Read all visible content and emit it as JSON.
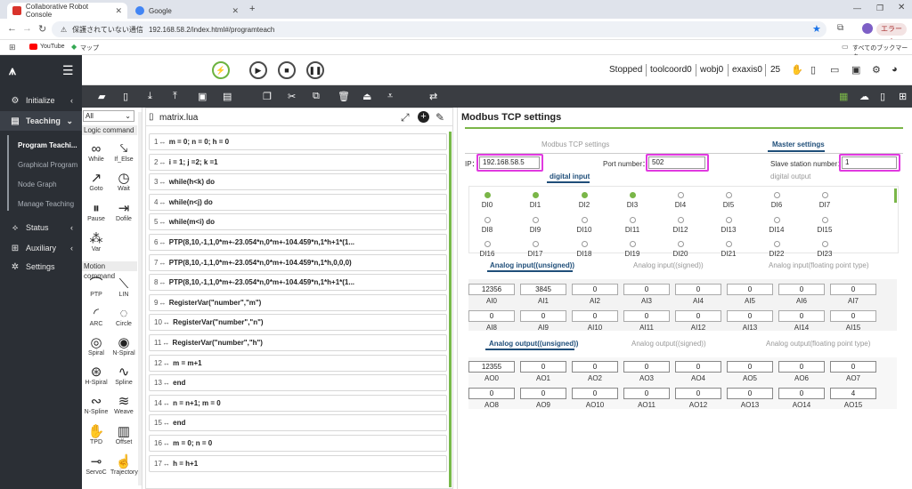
{
  "browser": {
    "tabs": [
      {
        "title": "Collaborative Robot Console"
      },
      {
        "title": "Google"
      }
    ],
    "url_warning": "保護されていない通信",
    "url": "192.168.58.2/index.html#/programteach",
    "profile_label": "エラー",
    "bookmarks": [
      {
        "label": "YouTube"
      },
      {
        "label": "マップ"
      }
    ],
    "all_bookmarks": "すべてのブックマーク"
  },
  "sidenav": {
    "items": [
      {
        "label": "Initialize"
      },
      {
        "label": "Teaching"
      },
      {
        "label": "Status"
      },
      {
        "label": "Auxiliary"
      },
      {
        "label": "Settings"
      }
    ],
    "teaching_sub": [
      {
        "label": "Program Teachi..."
      },
      {
        "label": "Graphical Program"
      },
      {
        "label": "Node Graph"
      },
      {
        "label": "Manage Teaching"
      }
    ]
  },
  "topbar": {
    "status": "Stopped",
    "coord": "toolcoord0",
    "wobj": "wobj0",
    "exaxis": "exaxis0",
    "speed": "25"
  },
  "palette": {
    "filter": "All",
    "logic_header": "Logic command",
    "logic": [
      {
        "label": "While"
      },
      {
        "label": "If_Else"
      },
      {
        "label": "Goto"
      },
      {
        "label": "Wait"
      },
      {
        "label": "Pause"
      },
      {
        "label": "Dofile"
      },
      {
        "label": "Var"
      }
    ],
    "motion_header": "Motion command",
    "motion": [
      {
        "label": "PTP"
      },
      {
        "label": "LIN"
      },
      {
        "label": "ARC"
      },
      {
        "label": "Circle"
      },
      {
        "label": "Spiral"
      },
      {
        "label": "N-Spiral"
      },
      {
        "label": "H-Spiral"
      },
      {
        "label": "Spline"
      },
      {
        "label": "N-Spline"
      },
      {
        "label": "Weave"
      },
      {
        "label": "TPD"
      },
      {
        "label": "Offset"
      },
      {
        "label": "ServoC"
      },
      {
        "label": "Trajectory"
      }
    ]
  },
  "editor": {
    "filename": "matrix.lua",
    "lines": [
      {
        "num": "1",
        "code": "m = 0; n = 0; h = 0"
      },
      {
        "num": "2",
        "code": "i = 1; j =2; k =1"
      },
      {
        "num": "3",
        "code": "while(h<k) do"
      },
      {
        "num": "4",
        "code": "while(n<j) do"
      },
      {
        "num": "5",
        "code": "while(m<i) do"
      },
      {
        "num": "6",
        "code": "PTP(8,10,-1,1,0*m+-23.054*n,0*m+-104.459*n,1*h+1*(1..."
      },
      {
        "num": "7",
        "code": "PTP(8,10,-1,1,0*m+-23.054*n,0*m+-104.459*n,1*h,0,0,0)"
      },
      {
        "num": "8",
        "code": "PTP(8,10,-1,1,0*m+-23.054*n,0*m+-104.459*n,1*h+1*(1..."
      },
      {
        "num": "9",
        "code": "RegisterVar(\"number\",\"m\")"
      },
      {
        "num": "10",
        "code": "RegisterVar(\"number\",\"n\")"
      },
      {
        "num": "11",
        "code": "RegisterVar(\"number\",\"h\")"
      },
      {
        "num": "12",
        "code": "m = m+1"
      },
      {
        "num": "13",
        "code": "end"
      },
      {
        "num": "14",
        "code": "n = n+1; m = 0"
      },
      {
        "num": "15",
        "code": "end"
      },
      {
        "num": "16",
        "code": "m = 0; n = 0"
      },
      {
        "num": "17",
        "code": "h = h+1"
      }
    ]
  },
  "modbus": {
    "title": "Modbus TCP settings",
    "tab_tcp": "Modbus TCP settings",
    "tab_master": "Master settings",
    "ip_label": "IP：",
    "ip": "192.168.58.5",
    "port_label": "Port number：",
    "port": "502",
    "slave_label": "Slave station number：",
    "slave": "1",
    "di_tab": "digital input",
    "do_tab": "digital output",
    "di_row1": [
      {
        "label": "DI0",
        "on": true
      },
      {
        "label": "DI1",
        "on": true
      },
      {
        "label": "DI2",
        "on": true
      },
      {
        "label": "DI3",
        "on": true
      },
      {
        "label": "DI4",
        "on": false
      },
      {
        "label": "DI5",
        "on": false
      },
      {
        "label": "DI6",
        "on": false
      },
      {
        "label": "DI7",
        "on": false
      }
    ],
    "di_row2": [
      {
        "label": "DI8"
      },
      {
        "label": "DI9"
      },
      {
        "label": "DI10"
      },
      {
        "label": "DI11"
      },
      {
        "label": "DI12"
      },
      {
        "label": "DI13"
      },
      {
        "label": "DI14"
      },
      {
        "label": "DI15"
      }
    ],
    "di_row3": [
      {
        "label": "DI16"
      },
      {
        "label": "DI17"
      },
      {
        "label": "DI18"
      },
      {
        "label": "DI19"
      },
      {
        "label": "DI20"
      },
      {
        "label": "DI21"
      },
      {
        "label": "DI22"
      },
      {
        "label": "DI23"
      }
    ],
    "ai_tabs": [
      "Analog input((unsigned))",
      "Analog input((signed))",
      "Analog input(floating point type)"
    ],
    "ai_row1": [
      {
        "label": "AI0",
        "value": "12356"
      },
      {
        "label": "AI1",
        "value": "3845"
      },
      {
        "label": "AI2",
        "value": "0"
      },
      {
        "label": "AI3",
        "value": "0"
      },
      {
        "label": "AI4",
        "value": "0"
      },
      {
        "label": "AI5",
        "value": "0"
      },
      {
        "label": "AI6",
        "value": "0"
      },
      {
        "label": "AI7",
        "value": "0"
      }
    ],
    "ai_row2": [
      {
        "label": "AI8",
        "value": "0"
      },
      {
        "label": "AI9",
        "value": "0"
      },
      {
        "label": "AI10",
        "value": "0"
      },
      {
        "label": "AI11",
        "value": "0"
      },
      {
        "label": "AI12",
        "value": "0"
      },
      {
        "label": "AI13",
        "value": "0"
      },
      {
        "label": "AI14",
        "value": "0"
      },
      {
        "label": "AI15",
        "value": "0"
      }
    ],
    "ao_tabs": [
      "Analog output((unsigned))",
      "Analog output((signed))",
      "Analog output(floating point type)"
    ],
    "ao_row1": [
      {
        "label": "AO0",
        "value": "12355"
      },
      {
        "label": "AO1",
        "value": "0"
      },
      {
        "label": "AO2",
        "value": "0"
      },
      {
        "label": "AO3",
        "value": "0"
      },
      {
        "label": "AO4",
        "value": "0"
      },
      {
        "label": "AO5",
        "value": "0"
      },
      {
        "label": "AO6",
        "value": "0"
      },
      {
        "label": "AO7",
        "value": "0"
      }
    ],
    "ao_row2": [
      {
        "label": "AO8",
        "value": "0"
      },
      {
        "label": "AO9",
        "value": "0"
      },
      {
        "label": "AO10",
        "value": "0"
      },
      {
        "label": "AO11",
        "value": "0"
      },
      {
        "label": "AO12",
        "value": "0"
      },
      {
        "label": "AO13",
        "value": "0"
      },
      {
        "label": "AO14",
        "value": "0"
      },
      {
        "label": "AO15",
        "value": "4"
      }
    ]
  }
}
